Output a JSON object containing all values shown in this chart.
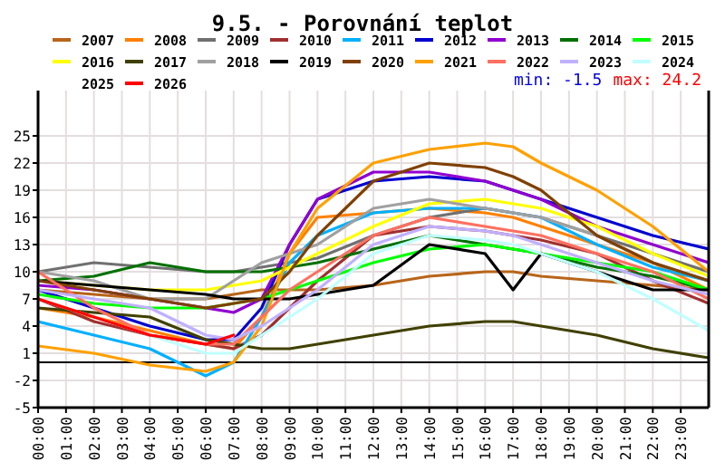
{
  "chart_data": {
    "type": "line",
    "title": "9.5. - Porovnání teplot",
    "annotations": [
      "min: -1.5",
      "max: 24.2"
    ],
    "x": [
      0,
      2,
      4,
      6,
      7,
      8,
      9,
      10,
      12,
      14,
      16,
      17,
      18,
      20,
      22,
      24
    ],
    "xlim": [
      0,
      24
    ],
    "ylim": [
      -5,
      30
    ],
    "xticks": [
      {
        "value": 0,
        "label": "00:00"
      },
      {
        "value": 1,
        "label": "01:00"
      },
      {
        "value": 2,
        "label": "02:00"
      },
      {
        "value": 3,
        "label": "03:00"
      },
      {
        "value": 4,
        "label": "04:00"
      },
      {
        "value": 5,
        "label": "05:00"
      },
      {
        "value": 6,
        "label": "06:00"
      },
      {
        "value": 7,
        "label": "07:00"
      },
      {
        "value": 8,
        "label": "08:00"
      },
      {
        "value": 9,
        "label": "09:00"
      },
      {
        "value": 10,
        "label": "10:00"
      },
      {
        "value": 11,
        "label": "11:00"
      },
      {
        "value": 12,
        "label": "12:00"
      },
      {
        "value": 13,
        "label": "13:00"
      },
      {
        "value": 14,
        "label": "14:00"
      },
      {
        "value": 15,
        "label": "15:00"
      },
      {
        "value": 16,
        "label": "16:00"
      },
      {
        "value": 17,
        "label": "17:00"
      },
      {
        "value": 18,
        "label": "18:00"
      },
      {
        "value": 19,
        "label": "19:00"
      },
      {
        "value": 20,
        "label": "20:00"
      },
      {
        "value": 21,
        "label": "21:00"
      },
      {
        "value": 22,
        "label": "22:00"
      },
      {
        "value": 23,
        "label": "23:00"
      }
    ],
    "yticks": [
      -5,
      -2,
      1,
      4,
      7,
      10,
      13,
      16,
      19,
      22,
      25
    ],
    "grid": true,
    "legend": "top",
    "marker": "none",
    "line_style": "solid",
    "ref_lines": [
      {
        "axis": "y",
        "value": 0,
        "color": "#000000"
      }
    ],
    "series": [
      {
        "name": "2007",
        "color": "#b8651a",
        "values": [
          8,
          7.5,
          7,
          7,
          7.5,
          8,
          8,
          8,
          8.5,
          9.5,
          10,
          10,
          9.5,
          9,
          8.5,
          8
        ]
      },
      {
        "name": "2008",
        "color": "#ff8000",
        "values": [
          6,
          5,
          3.5,
          2,
          1.5,
          5,
          12,
          16,
          16.5,
          17,
          16.5,
          16,
          15,
          13,
          11,
          8
        ]
      },
      {
        "name": "2009",
        "color": "#707070",
        "values": [
          10,
          11,
          10.5,
          10,
          10,
          10.5,
          11,
          11.5,
          14,
          16,
          17,
          16.5,
          16,
          14,
          12,
          10
        ]
      },
      {
        "name": "2010",
        "color": "#a03030",
        "values": [
          7,
          4.5,
          3,
          2,
          1.5,
          3,
          6,
          9,
          14,
          15,
          14.5,
          14,
          13.5,
          12,
          9,
          6.5
        ]
      },
      {
        "name": "2011",
        "color": "#00b0ff",
        "values": [
          4.5,
          3,
          1.5,
          -1.5,
          0,
          5,
          11,
          14,
          16.5,
          17,
          17,
          16.5,
          16,
          13,
          10.5,
          9
        ]
      },
      {
        "name": "2012",
        "color": "#0000d0",
        "values": [
          8,
          6,
          4,
          2.5,
          2.5,
          6,
          13,
          18,
          20,
          20.5,
          20,
          19,
          18,
          16,
          14,
          12.5
        ]
      },
      {
        "name": "2013",
        "color": "#9000d0",
        "values": [
          8.5,
          8,
          7,
          6,
          5.5,
          7,
          13,
          18,
          21,
          21,
          20,
          19,
          18,
          15,
          13,
          11
        ]
      },
      {
        "name": "2014",
        "color": "#007000",
        "values": [
          9,
          9.5,
          11,
          10,
          10,
          10,
          10.5,
          11,
          12.5,
          14,
          13,
          12.5,
          12,
          10.5,
          9.5,
          8
        ]
      },
      {
        "name": "2015",
        "color": "#00ff00",
        "values": [
          7.5,
          6.5,
          6,
          6,
          6.5,
          7,
          8,
          9,
          11,
          12.5,
          13,
          12.5,
          12,
          11,
          10,
          8
        ]
      },
      {
        "name": "2016",
        "color": "#ffff00",
        "values": [
          9,
          8.5,
          8,
          8,
          8.5,
          9,
          10.5,
          12,
          15,
          17.5,
          18,
          17.5,
          17,
          15,
          12,
          9.5
        ]
      },
      {
        "name": "2017",
        "color": "#404000",
        "values": [
          6,
          5.5,
          5,
          2.5,
          2,
          1.5,
          1.5,
          2,
          3,
          4,
          4.5,
          4.5,
          4,
          3,
          1.5,
          0.5
        ]
      },
      {
        "name": "2018",
        "color": "#a0a0a0",
        "values": [
          10,
          9,
          7,
          7,
          9,
          11,
          12,
          13,
          17,
          18,
          17,
          16.5,
          16,
          14,
          11,
          9
        ]
      },
      {
        "name": "2019",
        "color": "#000000",
        "values": [
          9,
          8.5,
          8,
          7.5,
          7,
          7,
          7,
          7.5,
          8.5,
          13,
          12,
          8,
          12,
          10,
          8,
          8
        ]
      },
      {
        "name": "2020",
        "color": "#804000",
        "values": [
          9,
          8,
          7,
          6,
          6.5,
          7,
          10,
          14,
          20,
          22,
          21.5,
          20.5,
          19,
          14,
          11,
          9
        ]
      },
      {
        "name": "2021",
        "color": "#ffa000",
        "values": [
          1.8,
          1,
          -0.3,
          -1,
          0,
          4,
          12,
          17,
          22,
          23.5,
          24.2,
          23.8,
          22,
          19,
          15,
          10
        ]
      },
      {
        "name": "2022",
        "color": "#ff7060",
        "values": [
          10,
          6,
          3,
          2,
          2,
          5,
          8,
          10,
          14,
          16,
          15,
          14.5,
          14,
          12,
          10,
          7
        ]
      },
      {
        "name": "2023",
        "color": "#c0b0ff",
        "values": [
          8,
          7,
          6,
          3,
          2.5,
          4,
          6,
          8,
          13,
          15,
          14.5,
          14,
          13,
          11,
          9,
          7.5
        ]
      },
      {
        "name": "2024",
        "color": "#c0ffff",
        "values": [
          7,
          5,
          3,
          1,
          1,
          3,
          5,
          7,
          12,
          14,
          13.5,
          13,
          12,
          10,
          7,
          3.5
        ]
      },
      {
        "name": "2025",
        "values": [
          null,
          null,
          null,
          null,
          null,
          null,
          null,
          null,
          null,
          null,
          null,
          null,
          null,
          null,
          null,
          null
        ]
      },
      {
        "name": "2026",
        "color": "#ff0000",
        "values": [
          7,
          5,
          3,
          2,
          3,
          null,
          null,
          null,
          null,
          null,
          null,
          null,
          null,
          null,
          null,
          null
        ]
      }
    ]
  }
}
